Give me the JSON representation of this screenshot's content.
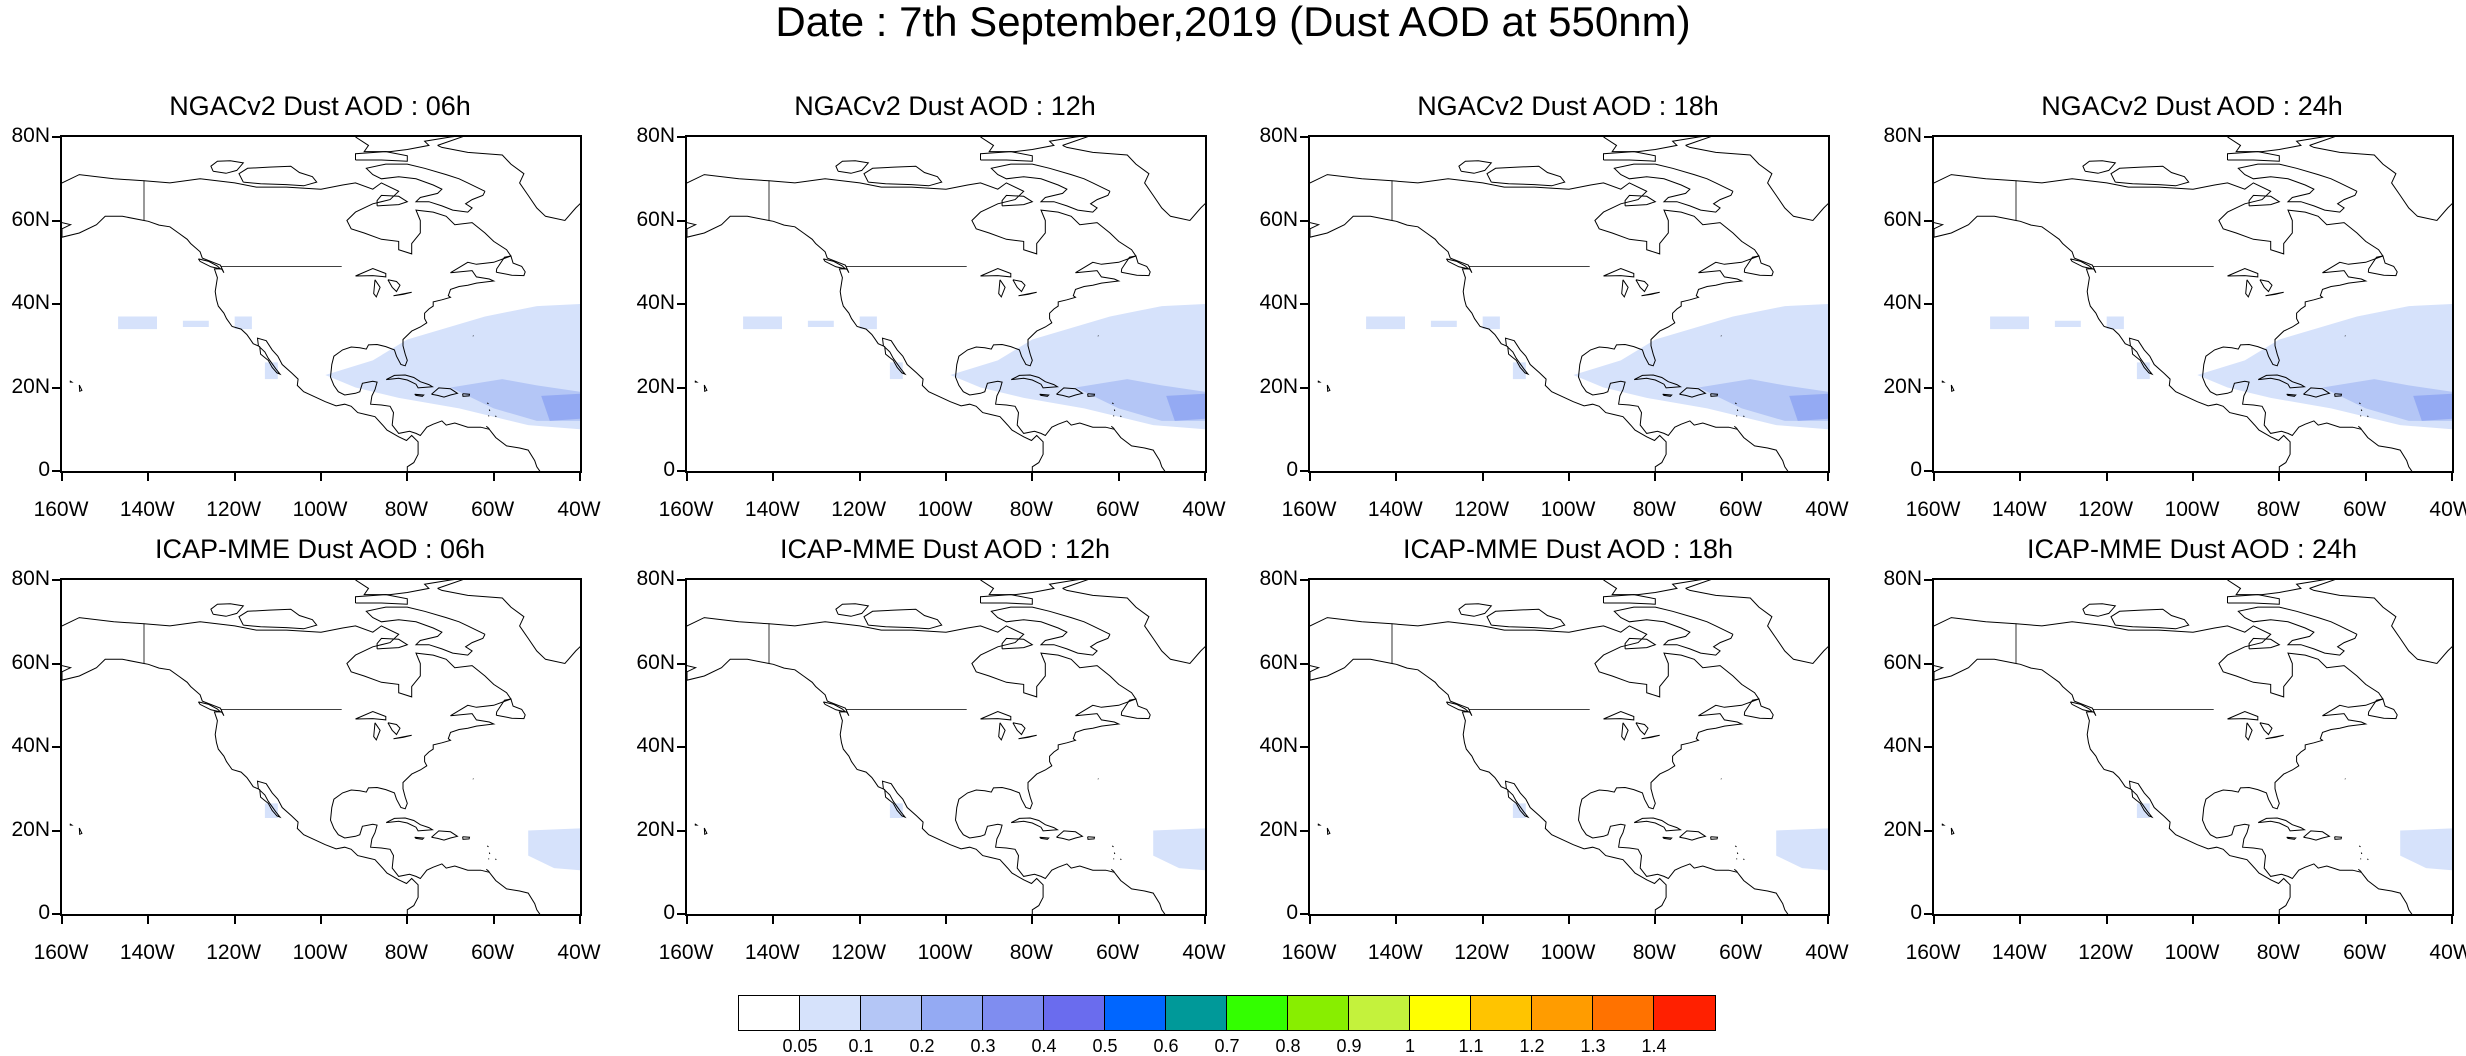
{
  "title": "Date : 7th September,2019 (Dust AOD at 550nm)",
  "axes": {
    "lat_labels": [
      "80N",
      "60N",
      "40N",
      "20N",
      "0"
    ],
    "lon_labels": [
      "160W",
      "140W",
      "120W",
      "100W",
      "80W",
      "60W",
      "40W"
    ],
    "lat_range": [
      0,
      80
    ],
    "lon_range": [
      -160,
      -40
    ]
  },
  "panels": [
    {
      "title": "NGACv2 Dust AOD : 06h",
      "model": "NGACv2",
      "hour": "06h"
    },
    {
      "title": "NGACv2 Dust AOD : 12h",
      "model": "NGACv2",
      "hour": "12h"
    },
    {
      "title": "NGACv2 Dust AOD : 18h",
      "model": "NGACv2",
      "hour": "18h"
    },
    {
      "title": "NGACv2 Dust AOD : 24h",
      "model": "NGACv2",
      "hour": "24h"
    },
    {
      "title": "ICAP-MME Dust AOD : 06h",
      "model": "ICAP-MME",
      "hour": "06h"
    },
    {
      "title": "ICAP-MME Dust AOD : 12h",
      "model": "ICAP-MME",
      "hour": "12h"
    },
    {
      "title": "ICAP-MME Dust AOD : 18h",
      "model": "ICAP-MME",
      "hour": "18h"
    },
    {
      "title": "ICAP-MME Dust AOD : 24h",
      "model": "ICAP-MME",
      "hour": "24h"
    }
  ],
  "colorbar": {
    "labels": [
      "0.05",
      "0.1",
      "0.2",
      "0.3",
      "0.4",
      "0.5",
      "0.6",
      "0.7",
      "0.8",
      "0.9",
      "1",
      "1.1",
      "1.2",
      "1.3",
      "1.4"
    ],
    "colors": [
      "#ffffff",
      "#d6e2fb",
      "#b4c6f6",
      "#94aaf3",
      "#7f8df0",
      "#6a6cee",
      "#0066ff",
      "#009999",
      "#33ff00",
      "#88ee00",
      "#c4f23c",
      "#ffff00",
      "#ffc400",
      "#ff9c00",
      "#ff7200",
      "#ff2000"
    ]
  },
  "colors": {
    "dust_low": "#d6e2fb",
    "dust_mid": "#b4c6f6",
    "dust_high": "#94aaf3",
    "coast": "#000000"
  }
}
